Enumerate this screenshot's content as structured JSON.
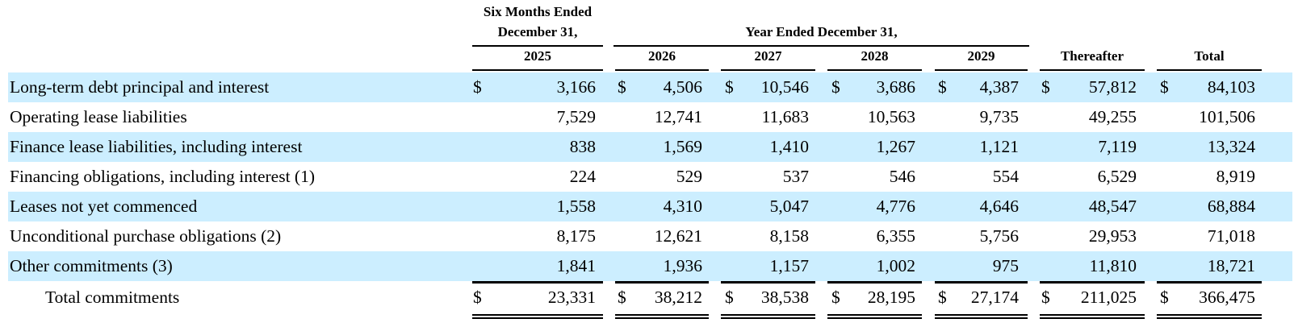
{
  "header": {
    "six_months_line1": "Six Months Ended",
    "six_months_line2": "December 31,",
    "year_ended": "Year Ended December 31,",
    "columns": [
      "2025",
      "2026",
      "2027",
      "2028",
      "2029",
      "Thereafter",
      "Total"
    ]
  },
  "currency_symbol": "$",
  "rows": [
    {
      "label": "Long-term debt principal and interest",
      "values": [
        "3,166",
        "4,506",
        "10,546",
        "3,686",
        "4,387",
        "57,812",
        "84,103"
      ],
      "show_currency": true
    },
    {
      "label": "Operating lease liabilities",
      "values": [
        "7,529",
        "12,741",
        "11,683",
        "10,563",
        "9,735",
        "49,255",
        "101,506"
      ],
      "show_currency": false
    },
    {
      "label": "Finance lease liabilities, including interest",
      "values": [
        "838",
        "1,569",
        "1,410",
        "1,267",
        "1,121",
        "7,119",
        "13,324"
      ],
      "show_currency": false
    },
    {
      "label": "Financing obligations, including interest (1)",
      "values": [
        "224",
        "529",
        "537",
        "546",
        "554",
        "6,529",
        "8,919"
      ],
      "show_currency": false
    },
    {
      "label": "Leases not yet commenced",
      "values": [
        "1,558",
        "4,310",
        "5,047",
        "4,776",
        "4,646",
        "48,547",
        "68,884"
      ],
      "show_currency": false
    },
    {
      "label": "Unconditional purchase obligations (2)",
      "values": [
        "8,175",
        "12,621",
        "8,158",
        "6,355",
        "5,756",
        "29,953",
        "71,018"
      ],
      "show_currency": false
    },
    {
      "label": "Other commitments (3)",
      "values": [
        "1,841",
        "1,936",
        "1,157",
        "1,002",
        "975",
        "11,810",
        "18,721"
      ],
      "show_currency": false
    }
  ],
  "total_row": {
    "label": "Total commitments",
    "values": [
      "23,331",
      "38,212",
      "38,538",
      "28,195",
      "27,174",
      "211,025",
      "366,475"
    ],
    "show_currency": true
  }
}
